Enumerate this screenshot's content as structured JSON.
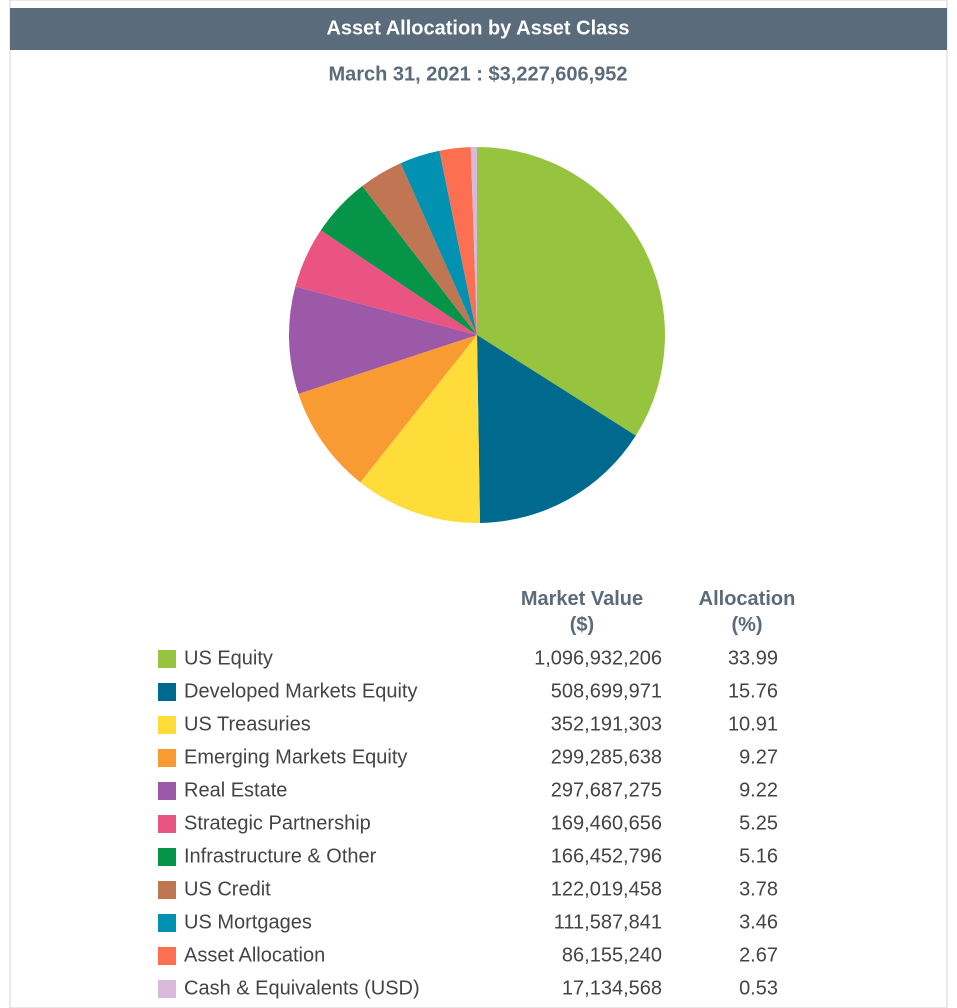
{
  "chart_data": {
    "type": "pie",
    "title": "Asset Allocation by Asset Class",
    "subtitle": "March 31, 2021 : $3,227,606,952",
    "categories": [
      "US Equity",
      "Developed Markets Equity",
      "US Treasuries",
      "Emerging Markets Equity",
      "Real Estate",
      "Strategic Partnership",
      "Infrastructure & Other",
      "US Credit",
      "US Mortgages",
      "Asset Allocation",
      "Cash & Equivalents (USD)"
    ],
    "values": [
      33.99,
      15.76,
      10.91,
      9.27,
      9.22,
      5.25,
      5.16,
      3.78,
      3.46,
      2.67,
      0.53
    ],
    "colors": [
      "#97c43e",
      "#006a8e",
      "#fedd3b",
      "#f99b33",
      "#9b59a8",
      "#ea5483",
      "#069548",
      "#c07652",
      "#0092b0",
      "#fd6f51",
      "#d8b9dc"
    ],
    "columns": [
      "Market Value ($)",
      "Allocation (%)"
    ],
    "market_values": [
      "1,096,932,206",
      "508,699,971",
      "352,191,303",
      "299,285,638",
      "297,687,275",
      "169,460,656",
      "166,452,796",
      "122,019,458",
      "111,587,841",
      "86,155,240",
      "17,134,568"
    ]
  }
}
